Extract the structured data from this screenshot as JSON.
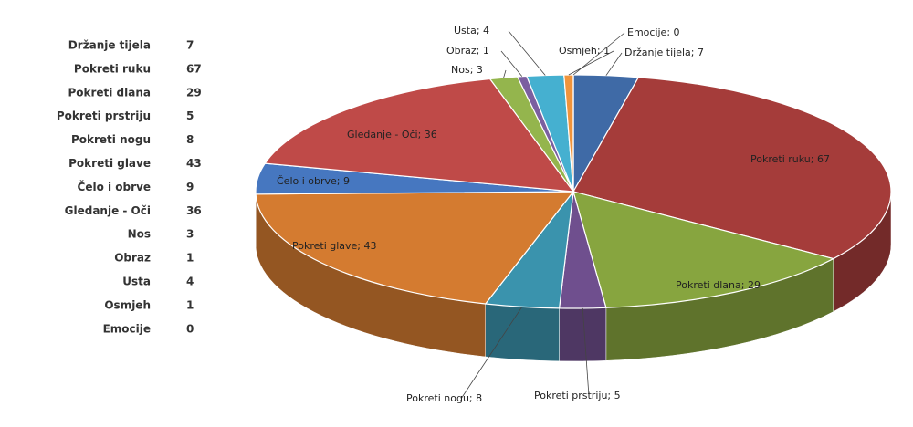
{
  "chart_data": {
    "type": "pie",
    "categories": [
      "Držanje tijela",
      "Pokreti ruku",
      "Pokreti dlana",
      "Pokreti prstriju",
      "Pokreti nogu",
      "Pokreti glave",
      "Čelo i obrve",
      "Gledanje - Oči",
      "Nos",
      "Obraz",
      "Usta",
      "Osmjeh",
      "Emocije"
    ],
    "values": [
      7,
      67,
      29,
      5,
      8,
      43,
      9,
      36,
      3,
      1,
      4,
      1,
      0
    ],
    "value_labels": [
      "Držanje tijela; 7",
      "Pokreti ruku; 67",
      "Pokreti dlana; 29",
      "Pokreti prstriju; 5",
      "Pokreti nogu; 8",
      "Pokreti glave; 43",
      "Čelo i obrve; 9",
      "Gledanje - Oči; 36",
      "Nos; 3",
      "Obraz; 1",
      "Usta; 4",
      "Osmjeh; 1",
      "Emocije; 0"
    ],
    "colors": [
      "#3f6aa6",
      "#a53c3a",
      "#87a53f",
      "#6f4f8e",
      "#3a93ad",
      "#d47b30",
      "#4677c0",
      "#bf4a48",
      "#94b54d",
      "#7b5fa0",
      "#45b0d0",
      "#f0943c",
      "#4a7dc0"
    ]
  }
}
